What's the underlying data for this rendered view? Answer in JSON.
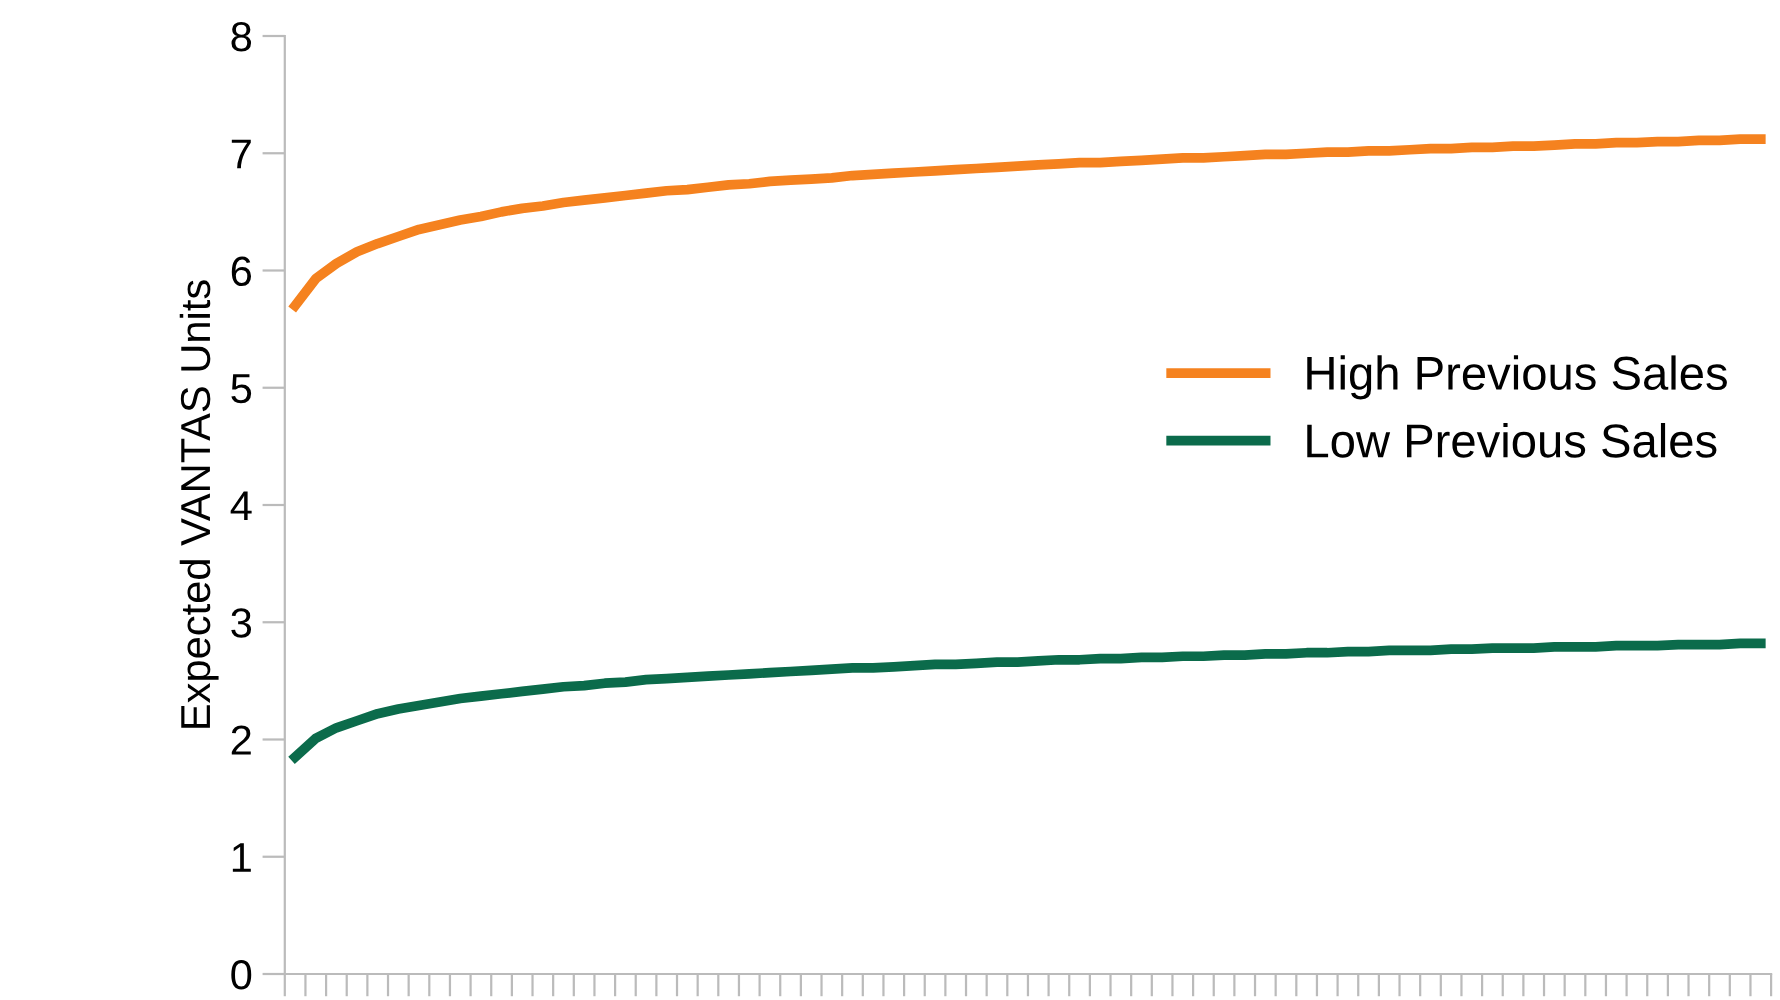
{
  "chart_data": {
    "type": "line",
    "ylabel": "Expected VANTAS Units",
    "categories": [
      null,
      null,
      null,
      null,
      null,
      null,
      null,
      null,
      null,
      null,
      null,
      null,
      null,
      null,
      null,
      null,
      null,
      null,
      null,
      null,
      null,
      null,
      null,
      null,
      null,
      null,
      null,
      null,
      null,
      null,
      null,
      null,
      null,
      null,
      null,
      null,
      null,
      null,
      null,
      null,
      null,
      null,
      null,
      null,
      null,
      null,
      null,
      null,
      null,
      null,
      null,
      null,
      null,
      null,
      null,
      null,
      null,
      null,
      null,
      null,
      null,
      null,
      null,
      null,
      null,
      null,
      null,
      null,
      null,
      null,
      null,
      null
    ],
    "series": [
      {
        "name": "High Previous Sales",
        "color": "#f5821f",
        "values": [
          5.7,
          5.93,
          6.06,
          6.16,
          6.23,
          6.29,
          6.35,
          6.39,
          6.43,
          6.46,
          6.5,
          6.53,
          6.55,
          6.58,
          6.6,
          6.62,
          6.64,
          6.66,
          6.68,
          6.69,
          6.71,
          6.73,
          6.74,
          6.76,
          6.77,
          6.78,
          6.79,
          6.81,
          6.82,
          6.83,
          6.84,
          6.85,
          6.86,
          6.87,
          6.88,
          6.89,
          6.9,
          6.91,
          6.92,
          6.92,
          6.93,
          6.94,
          6.95,
          6.96,
          6.96,
          6.97,
          6.98,
          6.99,
          6.99,
          7.0,
          7.01,
          7.01,
          7.02,
          7.02,
          7.03,
          7.04,
          7.04,
          7.05,
          7.05,
          7.06,
          7.06,
          7.07,
          7.08,
          7.08,
          7.09,
          7.09,
          7.1,
          7.1,
          7.11,
          7.11,
          7.12,
          7.12
        ]
      },
      {
        "name": "Low Previous Sales",
        "color": "#0b6b4b",
        "values": [
          1.85,
          2.01,
          2.1,
          2.16,
          2.22,
          2.26,
          2.29,
          2.32,
          2.35,
          2.37,
          2.39,
          2.41,
          2.43,
          2.45,
          2.46,
          2.48,
          2.49,
          2.51,
          2.52,
          2.53,
          2.54,
          2.55,
          2.56,
          2.57,
          2.58,
          2.59,
          2.6,
          2.61,
          2.61,
          2.62,
          2.63,
          2.64,
          2.64,
          2.65,
          2.66,
          2.66,
          2.67,
          2.68,
          2.68,
          2.69,
          2.69,
          2.7,
          2.7,
          2.71,
          2.71,
          2.72,
          2.72,
          2.73,
          2.73,
          2.74,
          2.74,
          2.75,
          2.75,
          2.76,
          2.76,
          2.76,
          2.77,
          2.77,
          2.78,
          2.78,
          2.78,
          2.79,
          2.79,
          2.79,
          2.8,
          2.8,
          2.8,
          2.81,
          2.81,
          2.81,
          2.82,
          2.82
        ]
      }
    ],
    "ylim": [
      0,
      8
    ],
    "yticks": [
      0,
      1,
      2,
      3,
      4,
      5,
      6,
      7,
      8
    ],
    "tick_labels": "y",
    "grid": false,
    "legend": "right",
    "line_style": "solid",
    "marker": "none"
  }
}
